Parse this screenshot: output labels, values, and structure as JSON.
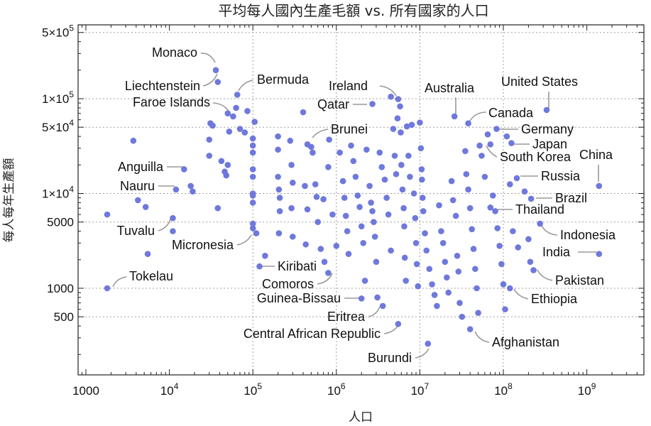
{
  "chart_data": {
    "type": "scatter",
    "title": "平均每人國內生產毛額 vs. 所有國家的人口",
    "xlabel": "人口",
    "ylabel": "每人每年生產額",
    "x_scale": "log",
    "y_scale": "log",
    "xlim": [
      700,
      4500000000
    ],
    "ylim": [
      150,
      600000
    ],
    "x_ticks": [
      {
        "value": 1000,
        "label": "1000"
      },
      {
        "value": 10000,
        "base": "10",
        "exp": "4"
      },
      {
        "value": 100000,
        "base": "10",
        "exp": "5"
      },
      {
        "value": 1000000,
        "base": "10",
        "exp": "6"
      },
      {
        "value": 10000000,
        "base": "10",
        "exp": "7"
      },
      {
        "value": 100000000,
        "base": "10",
        "exp": "8"
      },
      {
        "value": 1000000000,
        "base": "10",
        "exp": "9"
      }
    ],
    "y_ticks": [
      {
        "value": 500,
        "label": "500"
      },
      {
        "value": 1000,
        "label": "1000"
      },
      {
        "value": 5000,
        "label": "5000"
      },
      {
        "value": 10000,
        "label": "1×10",
        "exp": "4"
      },
      {
        "value": 50000,
        "label": "5×10",
        "exp": "4"
      },
      {
        "value": 100000,
        "label": "1×10",
        "exp": "5"
      },
      {
        "value": 500000,
        "label": "5×10",
        "exp": "5"
      }
    ],
    "grid": true,
    "labeled_points": [
      {
        "name": "Monaco",
        "x": 36000,
        "y": 200000
      },
      {
        "name": "Liechtenstein",
        "x": 38000,
        "y": 150000
      },
      {
        "name": "Bermuda",
        "x": 65000,
        "y": 110000
      },
      {
        "name": "Faroe Islands",
        "x": 50000,
        "y": 70000
      },
      {
        "name": "Ireland",
        "x": 4500000,
        "y": 105000
      },
      {
        "name": "Qatar",
        "x": 2700000,
        "y": 88000
      },
      {
        "name": "Australia",
        "x": 26000000,
        "y": 65000
      },
      {
        "name": "United States",
        "x": 330000000,
        "y": 76000
      },
      {
        "name": "Canada",
        "x": 38000000,
        "y": 55000
      },
      {
        "name": "Germany",
        "x": 83000000,
        "y": 48000
      },
      {
        "name": "Japan",
        "x": 125000000,
        "y": 34000
      },
      {
        "name": "South Korea",
        "x": 52000000,
        "y": 32000
      },
      {
        "name": "China",
        "x": 1400000000,
        "y": 12000
      },
      {
        "name": "Brunei",
        "x": 450000,
        "y": 33000
      },
      {
        "name": "Anguilla",
        "x": 15000,
        "y": 18000
      },
      {
        "name": "Nauru",
        "x": 12000,
        "y": 11000
      },
      {
        "name": "Russia",
        "x": 145000000,
        "y": 14500
      },
      {
        "name": "Brazil",
        "x": 215000000,
        "y": 8800
      },
      {
        "name": "Thailand",
        "x": 70000000,
        "y": 7100
      },
      {
        "name": "Tuvalu",
        "x": 11000,
        "y": 5500
      },
      {
        "name": "Micronesia",
        "x": 110000,
        "y": 3800
      },
      {
        "name": "Indonesia",
        "x": 275000000,
        "y": 4800
      },
      {
        "name": "India",
        "x": 1400000000,
        "y": 2300
      },
      {
        "name": "Kiribati",
        "x": 120000,
        "y": 1700
      },
      {
        "name": "Comoros",
        "x": 800000,
        "y": 1450
      },
      {
        "name": "Pakistan",
        "x": 230000000,
        "y": 1550
      },
      {
        "name": "Tokelau",
        "x": 1800,
        "y": 1000
      },
      {
        "name": "Ethiopia",
        "x": 120000000,
        "y": 1000
      },
      {
        "name": "Guinea-Bissau",
        "x": 2000000,
        "y": 780
      },
      {
        "name": "Eritrea",
        "x": 3600000,
        "y": 650
      },
      {
        "name": "Central African Republic",
        "x": 5500000,
        "y": 420
      },
      {
        "name": "Afghanistan",
        "x": 40000000,
        "y": 370
      },
      {
        "name": "Burundi",
        "x": 12500000,
        "y": 260
      }
    ],
    "other_points": [
      [
        3700,
        36000
      ],
      [
        4200,
        8500
      ],
      [
        5200,
        7200
      ],
      [
        5500,
        2300
      ],
      [
        1800,
        6000
      ],
      [
        11000,
        4000
      ],
      [
        18000,
        12000
      ],
      [
        19000,
        10500
      ],
      [
        31000,
        55000
      ],
      [
        33000,
        52000
      ],
      [
        30000,
        37000
      ],
      [
        30000,
        25000
      ],
      [
        38000,
        7000
      ],
      [
        42000,
        22000
      ],
      [
        46000,
        17000
      ],
      [
        48000,
        15500
      ],
      [
        50000,
        20000
      ],
      [
        52000,
        45000
      ],
      [
        58000,
        65000
      ],
      [
        63000,
        80000
      ],
      [
        70000,
        48000
      ],
      [
        80000,
        44000
      ],
      [
        86000,
        74000
      ],
      [
        100000,
        38000
      ],
      [
        100000,
        32000
      ],
      [
        100000,
        27000
      ],
      [
        100000,
        18000
      ],
      [
        100000,
        15000
      ],
      [
        100000,
        10000
      ],
      [
        100000,
        9500
      ],
      [
        100000,
        8000
      ],
      [
        100000,
        4800
      ],
      [
        100000,
        4300
      ],
      [
        105000,
        57000
      ],
      [
        140000,
        2200
      ],
      [
        200000,
        40000
      ],
      [
        200000,
        29000
      ],
      [
        200000,
        15000
      ],
      [
        205000,
        11000
      ],
      [
        210000,
        9000
      ],
      [
        210000,
        6500
      ],
      [
        205000,
        3800
      ],
      [
        280000,
        36000
      ],
      [
        290000,
        20000
      ],
      [
        300000,
        13000
      ],
      [
        290000,
        7000
      ],
      [
        300000,
        3500
      ],
      [
        400000,
        72000
      ],
      [
        420000,
        12000
      ],
      [
        450000,
        6800
      ],
      [
        430000,
        2900
      ],
      [
        500000,
        31000
      ],
      [
        520000,
        27000
      ],
      [
        560000,
        12500
      ],
      [
        580000,
        9200
      ],
      [
        600000,
        5000
      ],
      [
        650000,
        2600
      ],
      [
        700000,
        8700
      ],
      [
        720000,
        1900
      ],
      [
        800000,
        19000
      ],
      [
        820000,
        37000
      ],
      [
        900000,
        6000
      ],
      [
        1000000,
        2800
      ],
      [
        1100000,
        27000
      ],
      [
        1200000,
        13500
      ],
      [
        1250000,
        9000
      ],
      [
        1300000,
        5800
      ],
      [
        1350000,
        4000
      ],
      [
        1400000,
        2300
      ],
      [
        1500000,
        32000
      ],
      [
        1600000,
        22000
      ],
      [
        1700000,
        15000
      ],
      [
        1800000,
        9500
      ],
      [
        1900000,
        7200
      ],
      [
        2000000,
        4500
      ],
      [
        2100000,
        3000
      ],
      [
        2200000,
        1200
      ],
      [
        2300000,
        29000
      ],
      [
        2500000,
        12000
      ],
      [
        2600000,
        8000
      ],
      [
        2700000,
        6500
      ],
      [
        2800000,
        5000
      ],
      [
        2900000,
        3500
      ],
      [
        3000000,
        1900
      ],
      [
        3100000,
        800
      ],
      [
        3300000,
        27000
      ],
      [
        3500000,
        19000
      ],
      [
        3800000,
        14000
      ],
      [
        4000000,
        9000
      ],
      [
        4200000,
        6000
      ],
      [
        4500000,
        2500
      ],
      [
        4800000,
        48000
      ],
      [
        5000000,
        25000
      ],
      [
        5200000,
        16000
      ],
      [
        5400000,
        62000
      ],
      [
        5500000,
        99000
      ],
      [
        5800000,
        83000
      ],
      [
        5900000,
        44000
      ],
      [
        6000000,
        20000
      ],
      [
        6200000,
        11000
      ],
      [
        6400000,
        7000
      ],
      [
        6500000,
        4500
      ],
      [
        6600000,
        2100
      ],
      [
        6800000,
        1200
      ],
      [
        7000000,
        51000
      ],
      [
        7300000,
        25000
      ],
      [
        7600000,
        15000
      ],
      [
        8000000,
        53000
      ],
      [
        8500000,
        10000
      ],
      [
        8800000,
        5500
      ],
      [
        9000000,
        3000
      ],
      [
        9200000,
        1800
      ],
      [
        9500000,
        1050
      ],
      [
        10000000,
        56000
      ],
      [
        10300000,
        30000
      ],
      [
        10500000,
        18000
      ],
      [
        10600000,
        14000
      ],
      [
        10800000,
        9000
      ],
      [
        11000000,
        6500
      ],
      [
        11500000,
        3800
      ],
      [
        12000000,
        2500
      ],
      [
        13000000,
        1600
      ],
      [
        14000000,
        1100
      ],
      [
        15000000,
        850
      ],
      [
        16000000,
        650
      ],
      [
        17000000,
        7500
      ],
      [
        18000000,
        4000
      ],
      [
        19000000,
        3000
      ],
      [
        20000000,
        1900
      ],
      [
        21000000,
        1300
      ],
      [
        22000000,
        900
      ],
      [
        24000000,
        13500
      ],
      [
        25000000,
        8500
      ],
      [
        27000000,
        5800
      ],
      [
        28000000,
        2200
      ],
      [
        29000000,
        1500
      ],
      [
        30000000,
        700
      ],
      [
        32000000,
        500
      ],
      [
        35000000,
        28000
      ],
      [
        36000000,
        16000
      ],
      [
        38000000,
        11000
      ],
      [
        40000000,
        7000
      ],
      [
        42000000,
        4200
      ],
      [
        44000000,
        2600
      ],
      [
        46000000,
        1600
      ],
      [
        48000000,
        1000
      ],
      [
        50000000,
        550
      ],
      [
        55000000,
        25000
      ],
      [
        60000000,
        15000
      ],
      [
        65000000,
        42000
      ],
      [
        70000000,
        33000
      ],
      [
        75000000,
        9500
      ],
      [
        80000000,
        6500
      ],
      [
        85000000,
        4300
      ],
      [
        90000000,
        2800
      ],
      [
        95000000,
        1800
      ],
      [
        100000000,
        1100
      ],
      [
        105000000,
        600
      ],
      [
        110000000,
        40000
      ],
      [
        120000000,
        12500
      ],
      [
        130000000,
        4000
      ],
      [
        150000000,
        2700
      ],
      [
        180000000,
        10500
      ],
      [
        200000000,
        3300
      ],
      [
        210000000,
        1900
      ]
    ]
  }
}
